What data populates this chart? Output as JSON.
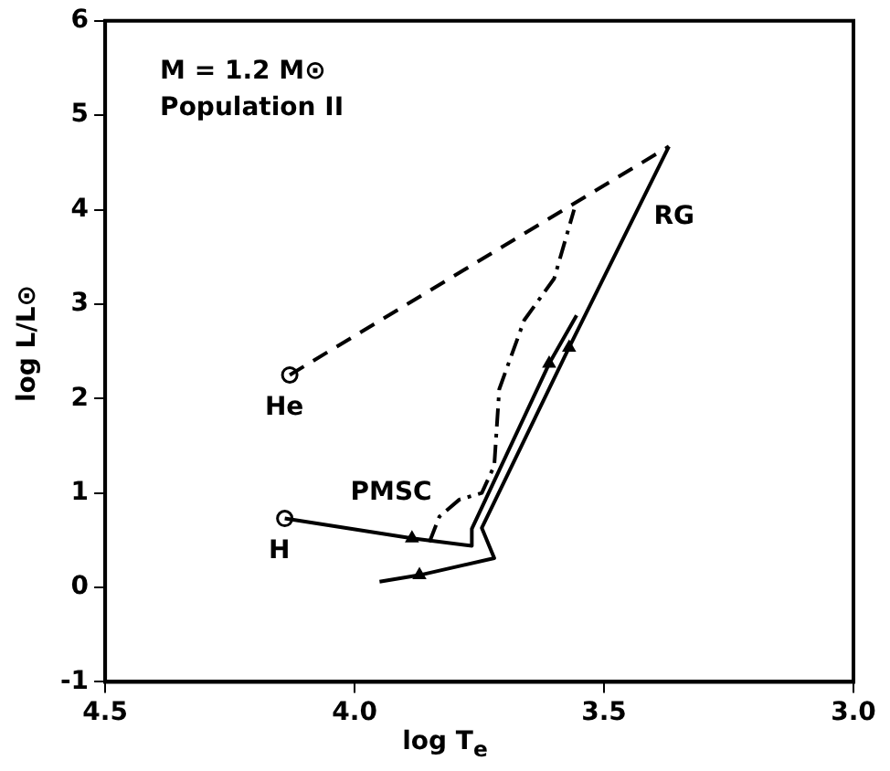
{
  "chart_data": {
    "type": "line",
    "xlabel": "log T$_{e}$",
    "ylabel": "log L/L⊙",
    "xlim": [
      4.5,
      3.0
    ],
    "ylim": [
      -1,
      6
    ],
    "xticks": [
      4.5,
      {
        "value": 4,
        "label": "4.0"
      },
      3.5,
      {
        "value": 3,
        "label": "3.0"
      }
    ],
    "yticks": [
      -1,
      0,
      1,
      2,
      3,
      4,
      5,
      6
    ],
    "grid": false,
    "legend": false,
    "series": [
      {
        "type": "line",
        "color": "#000000",
        "line_style": "solid",
        "marker": "none",
        "x": [
          4.14,
          3.885,
          3.765,
          3.765,
          3.61,
          3.555
        ],
        "values": [
          0.73,
          0.52,
          0.44,
          0.62,
          2.37,
          2.88
        ]
      },
      {
        "type": "line",
        "color": "#000000",
        "line_style": "solid",
        "marker": "none",
        "x": [
          3.95,
          3.87,
          3.72,
          3.745,
          3.57,
          3.37
        ],
        "values": [
          0.06,
          0.13,
          0.31,
          0.63,
          2.54,
          4.67
        ]
      },
      {
        "type": "line",
        "color": "#000000",
        "line_style": "dashed",
        "marker": "none",
        "x": [
          4.13,
          3.37
        ],
        "values": [
          2.25,
          4.67
        ]
      },
      {
        "type": "line",
        "color": "#000000",
        "line_style": "dashdot",
        "marker": "none",
        "x": [
          3.85,
          3.83,
          3.79,
          3.745,
          3.72,
          3.71,
          3.66,
          3.6,
          3.56
        ],
        "values": [
          0.48,
          0.75,
          0.93,
          1.0,
          1.29,
          2.1,
          2.83,
          3.27,
          4.0
        ]
      },
      {
        "type": "scatter",
        "color": "#000000",
        "marker": "circle",
        "x": [
          4.14,
          4.13
        ],
        "values": [
          0.73,
          2.25
        ]
      },
      {
        "type": "scatter",
        "color": "#000000",
        "marker": "triangle",
        "x": [
          3.885,
          3.87,
          3.57,
          3.61
        ],
        "values": [
          0.52,
          0.13,
          2.54,
          2.37
        ]
      }
    ],
    "annotations": [
      "M = 1.2 M⊙",
      "Population II",
      {
        "text": "H",
        "x": 4.14,
        "y": 0.73
      },
      {
        "text": "He",
        "x": 4.13,
        "y": 2.25
      },
      {
        "text": "PMSC",
        "x": 4.0,
        "y": 0.615
      },
      {
        "text": "RG",
        "x": 3.44,
        "y": 3.92
      }
    ]
  }
}
